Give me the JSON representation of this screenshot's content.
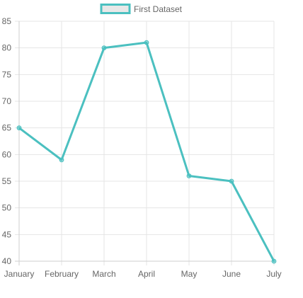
{
  "chart_data": {
    "type": "line",
    "title": "",
    "xlabel": "",
    "ylabel": "",
    "categories": [
      "January",
      "February",
      "March",
      "April",
      "May",
      "June",
      "July"
    ],
    "series": [
      {
        "name": "First Dataset",
        "values": [
          65,
          59,
          80,
          81,
          56,
          55,
          40
        ],
        "color": "#4bc0c0",
        "fill": false
      }
    ],
    "ylim": [
      40,
      85
    ],
    "yticks": [
      40,
      45,
      50,
      55,
      60,
      65,
      70,
      75,
      80,
      85
    ],
    "grid": true,
    "legend_position": "top",
    "colors": {
      "grid": "#e5e5e5",
      "axis": "#cfcfcf",
      "tick_text": "#666666",
      "legend_box_fill": "#e8e8e8"
    }
  }
}
